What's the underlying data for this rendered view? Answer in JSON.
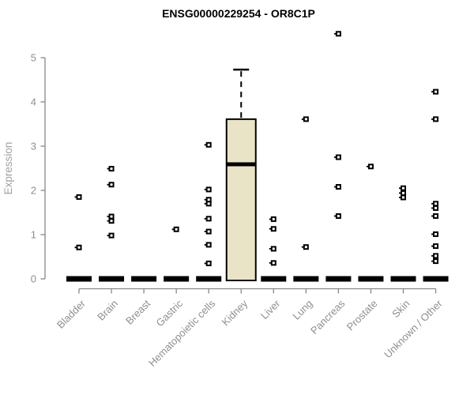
{
  "chart_data": {
    "type": "boxplot",
    "title": "ENSG00000229254 - OR8C1P",
    "xlabel": "",
    "ylabel": "Expression",
    "ylim": [
      0,
      5
    ],
    "yticks": [
      0,
      1,
      2,
      3,
      4,
      5
    ],
    "grid": false,
    "legend": "none",
    "categories": [
      "Bladder",
      "Brain",
      "Breast",
      "Gastric",
      "Hematopoietic cells",
      "Kidney",
      "Liver",
      "Lung",
      "Pancreas",
      "Prostate",
      "Skin",
      "Unknown / Other"
    ],
    "boxes": [
      {
        "category": "Bladder",
        "q1": 0,
        "median": 0,
        "q3": 0,
        "whisker_low": 0,
        "whisker_high": 0
      },
      {
        "category": "Brain",
        "q1": 0,
        "median": 0,
        "q3": 0,
        "whisker_low": 0,
        "whisker_high": 0
      },
      {
        "category": "Breast",
        "q1": 0,
        "median": 0,
        "q3": 0,
        "whisker_low": 0,
        "whisker_high": 0
      },
      {
        "category": "Gastric",
        "q1": 0,
        "median": 0,
        "q3": 0,
        "whisker_low": 0,
        "whisker_high": 0
      },
      {
        "category": "Hematopoietic cells",
        "q1": 0,
        "median": 0,
        "q3": 0,
        "whisker_low": 0,
        "whisker_high": 0
      },
      {
        "category": "Kidney",
        "q1": 0,
        "median": 2.59,
        "q3": 3.61,
        "whisker_low": 0,
        "whisker_high": 4.73
      },
      {
        "category": "Liver",
        "q1": 0,
        "median": 0,
        "q3": 0,
        "whisker_low": 0,
        "whisker_high": 0
      },
      {
        "category": "Lung",
        "q1": 0,
        "median": 0,
        "q3": 0,
        "whisker_low": 0,
        "whisker_high": 0
      },
      {
        "category": "Pancreas",
        "q1": 0,
        "median": 0,
        "q3": 0,
        "whisker_low": 0,
        "whisker_high": 0
      },
      {
        "category": "Prostate",
        "q1": 0,
        "median": 0,
        "q3": 0,
        "whisker_low": 0,
        "whisker_high": 0
      },
      {
        "category": "Skin",
        "q1": 0,
        "median": 0,
        "q3": 0,
        "whisker_low": 0,
        "whisker_high": 0
      },
      {
        "category": "Unknown / Other",
        "q1": 0,
        "median": 0,
        "q3": 0,
        "whisker_low": 0,
        "whisker_high": 0
      }
    ],
    "points": {
      "Bladder": [
        1.85,
        0.71
      ],
      "Brain": [
        2.49,
        2.13,
        1.41,
        1.31,
        0.98
      ],
      "Breast": [],
      "Gastric": [
        1.12
      ],
      "Hematopoietic cells": [
        3.03,
        2.02,
        1.79,
        1.7,
        1.36,
        1.07,
        0.77,
        0.35
      ],
      "Kidney": [],
      "Liver": [
        1.35,
        1.13,
        0.68,
        0.36
      ],
      "Lung": [
        3.61,
        0.72
      ],
      "Pancreas": [
        5.54,
        2.75,
        2.08,
        1.42
      ],
      "Prostate": [
        2.54
      ],
      "Skin": [
        2.05,
        1.94,
        1.84
      ],
      "Unknown / Other": [
        4.23,
        3.61,
        1.7,
        1.6,
        1.42,
        1.01,
        0.74,
        0.52,
        0.4
      ]
    },
    "colors": {
      "box_fill": "#EAE4C7",
      "box_border": "#000000",
      "median": "#000000",
      "marker": "#000000",
      "axis": "#888888",
      "tick_label": "#8f8f8f",
      "ylabel": "#a0a0a0",
      "title": "#000000",
      "background": "#ffffff"
    }
  }
}
